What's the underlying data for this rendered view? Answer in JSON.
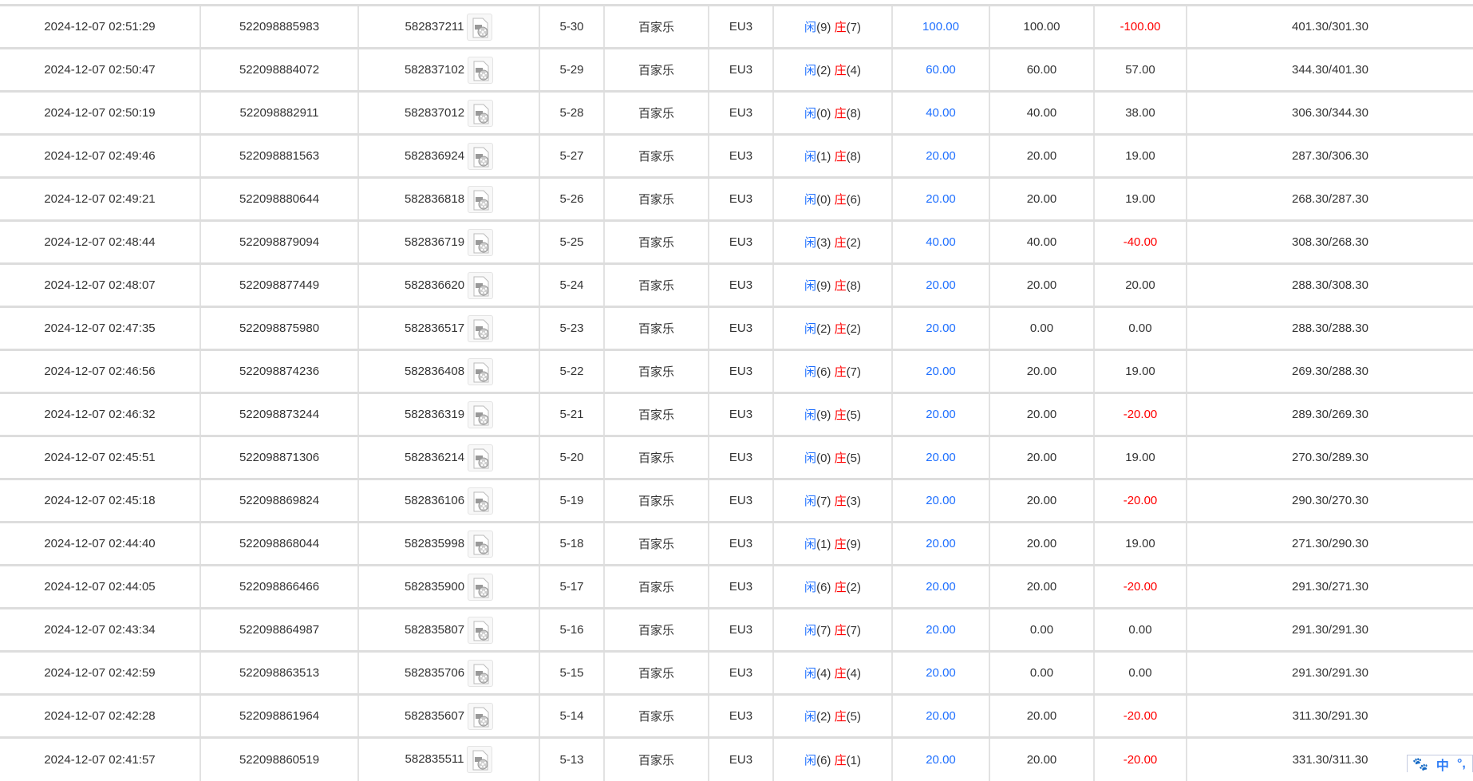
{
  "colors": {
    "player": "#1e6fff",
    "banker": "#f00",
    "negative": "#f00",
    "bet": "#1e6fff"
  },
  "player_label": "闲",
  "banker_label": "庄",
  "rows": [
    {
      "time": "2024-12-07 02:51:29",
      "order": "522098885983",
      "round": "582837211",
      "shoe": "5-30",
      "game": "百家乐",
      "table": "EU3",
      "p": "9",
      "b": "7",
      "bet": "100.00",
      "valid": "100.00",
      "win": "-100.00",
      "balance": "401.30/301.30"
    },
    {
      "time": "2024-12-07 02:50:47",
      "order": "522098884072",
      "round": "582837102",
      "shoe": "5-29",
      "game": "百家乐",
      "table": "EU3",
      "p": "2",
      "b": "4",
      "bet": "60.00",
      "valid": "60.00",
      "win": "57.00",
      "balance": "344.30/401.30"
    },
    {
      "time": "2024-12-07 02:50:19",
      "order": "522098882911",
      "round": "582837012",
      "shoe": "5-28",
      "game": "百家乐",
      "table": "EU3",
      "p": "0",
      "b": "8",
      "bet": "40.00",
      "valid": "40.00",
      "win": "38.00",
      "balance": "306.30/344.30"
    },
    {
      "time": "2024-12-07 02:49:46",
      "order": "522098881563",
      "round": "582836924",
      "shoe": "5-27",
      "game": "百家乐",
      "table": "EU3",
      "p": "1",
      "b": "8",
      "bet": "20.00",
      "valid": "20.00",
      "win": "19.00",
      "balance": "287.30/306.30"
    },
    {
      "time": "2024-12-07 02:49:21",
      "order": "522098880644",
      "round": "582836818",
      "shoe": "5-26",
      "game": "百家乐",
      "table": "EU3",
      "p": "0",
      "b": "6",
      "bet": "20.00",
      "valid": "20.00",
      "win": "19.00",
      "balance": "268.30/287.30"
    },
    {
      "time": "2024-12-07 02:48:44",
      "order": "522098879094",
      "round": "582836719",
      "shoe": "5-25",
      "game": "百家乐",
      "table": "EU3",
      "p": "3",
      "b": "2",
      "bet": "40.00",
      "valid": "40.00",
      "win": "-40.00",
      "balance": "308.30/268.30"
    },
    {
      "time": "2024-12-07 02:48:07",
      "order": "522098877449",
      "round": "582836620",
      "shoe": "5-24",
      "game": "百家乐",
      "table": "EU3",
      "p": "9",
      "b": "8",
      "bet": "20.00",
      "valid": "20.00",
      "win": "20.00",
      "balance": "288.30/308.30"
    },
    {
      "time": "2024-12-07 02:47:35",
      "order": "522098875980",
      "round": "582836517",
      "shoe": "5-23",
      "game": "百家乐",
      "table": "EU3",
      "p": "2",
      "b": "2",
      "bet": "20.00",
      "valid": "0.00",
      "win": "0.00",
      "balance": "288.30/288.30"
    },
    {
      "time": "2024-12-07 02:46:56",
      "order": "522098874236",
      "round": "582836408",
      "shoe": "5-22",
      "game": "百家乐",
      "table": "EU3",
      "p": "6",
      "b": "7",
      "bet": "20.00",
      "valid": "20.00",
      "win": "19.00",
      "balance": "269.30/288.30"
    },
    {
      "time": "2024-12-07 02:46:32",
      "order": "522098873244",
      "round": "582836319",
      "shoe": "5-21",
      "game": "百家乐",
      "table": "EU3",
      "p": "9",
      "b": "5",
      "bet": "20.00",
      "valid": "20.00",
      "win": "-20.00",
      "balance": "289.30/269.30"
    },
    {
      "time": "2024-12-07 02:45:51",
      "order": "522098871306",
      "round": "582836214",
      "shoe": "5-20",
      "game": "百家乐",
      "table": "EU3",
      "p": "0",
      "b": "5",
      "bet": "20.00",
      "valid": "20.00",
      "win": "19.00",
      "balance": "270.30/289.30"
    },
    {
      "time": "2024-12-07 02:45:18",
      "order": "522098869824",
      "round": "582836106",
      "shoe": "5-19",
      "game": "百家乐",
      "table": "EU3",
      "p": "7",
      "b": "3",
      "bet": "20.00",
      "valid": "20.00",
      "win": "-20.00",
      "balance": "290.30/270.30"
    },
    {
      "time": "2024-12-07 02:44:40",
      "order": "522098868044",
      "round": "582835998",
      "shoe": "5-18",
      "game": "百家乐",
      "table": "EU3",
      "p": "1",
      "b": "9",
      "bet": "20.00",
      "valid": "20.00",
      "win": "19.00",
      "balance": "271.30/290.30"
    },
    {
      "time": "2024-12-07 02:44:05",
      "order": "522098866466",
      "round": "582835900",
      "shoe": "5-17",
      "game": "百家乐",
      "table": "EU3",
      "p": "6",
      "b": "2",
      "bet": "20.00",
      "valid": "20.00",
      "win": "-20.00",
      "balance": "291.30/271.30"
    },
    {
      "time": "2024-12-07 02:43:34",
      "order": "522098864987",
      "round": "582835807",
      "shoe": "5-16",
      "game": "百家乐",
      "table": "EU3",
      "p": "7",
      "b": "7",
      "bet": "20.00",
      "valid": "0.00",
      "win": "0.00",
      "balance": "291.30/291.30"
    },
    {
      "time": "2024-12-07 02:42:59",
      "order": "522098863513",
      "round": "582835706",
      "shoe": "5-15",
      "game": "百家乐",
      "table": "EU3",
      "p": "4",
      "b": "4",
      "bet": "20.00",
      "valid": "0.00",
      "win": "0.00",
      "balance": "291.30/291.30"
    },
    {
      "time": "2024-12-07 02:42:28",
      "order": "522098861964",
      "round": "582835607",
      "shoe": "5-14",
      "game": "百家乐",
      "table": "EU3",
      "p": "2",
      "b": "5",
      "bet": "20.00",
      "valid": "20.00",
      "win": "-20.00",
      "balance": "311.30/291.30"
    },
    {
      "time": "2024-12-07 02:41:57",
      "order": "522098860519",
      "round": "582835511",
      "shoe": "5-13",
      "game": "百家乐",
      "table": "EU3",
      "p": "6",
      "b": "1",
      "bet": "20.00",
      "valid": "20.00",
      "win": "-20.00",
      "balance": "331.30/311.30"
    }
  ],
  "ime": {
    "mode": "中",
    "punct": "°,"
  }
}
